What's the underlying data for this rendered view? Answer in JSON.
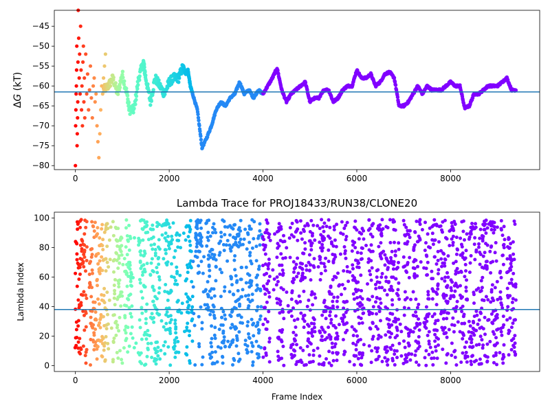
{
  "chart_data": [
    {
      "type": "scatter",
      "title": "",
      "xlabel": "",
      "ylabel": "ΔG (kT)",
      "ylabel_parts": [
        "Δ",
        "G",
        " (kT)"
      ],
      "xlim": [
        -450,
        9900
      ],
      "ylim": [
        -81,
        -41
      ],
      "xticks": [
        0,
        2000,
        4000,
        6000,
        8000
      ],
      "xtick_labels": [
        "0",
        "2000",
        "4000",
        "6000",
        "8000"
      ],
      "yticks": [
        -80,
        -75,
        -70,
        -65,
        -60,
        -55,
        -50,
        -45
      ],
      "ytick_labels": [
        "−80",
        "−75",
        "−70",
        "−65",
        "−60",
        "−55",
        "−50",
        "−45"
      ],
      "hline": -61.5,
      "color_map": "rainbow (color encodes trajectory segment; red = earliest frames, violet = latest)",
      "trace_anchors": [
        [
          600,
          -61
        ],
        [
          700,
          -60
        ],
        [
          800,
          -58
        ],
        [
          900,
          -62
        ],
        [
          1000,
          -57
        ],
        [
          1100,
          -62
        ],
        [
          1150,
          -66
        ],
        [
          1250,
          -66
        ],
        [
          1350,
          -58
        ],
        [
          1450,
          -54
        ],
        [
          1500,
          -58
        ],
        [
          1600,
          -64
        ],
        [
          1700,
          -58
        ],
        [
          1800,
          -60
        ],
        [
          1900,
          -62
        ],
        [
          2000,
          -59
        ],
        [
          2100,
          -58
        ],
        [
          2200,
          -58
        ],
        [
          2300,
          -55
        ],
        [
          2350,
          -57
        ],
        [
          2400,
          -56
        ],
        [
          2450,
          -60
        ],
        [
          2500,
          -62
        ],
        [
          2600,
          -66
        ],
        [
          2700,
          -75.5
        ],
        [
          2800,
          -73
        ],
        [
          2900,
          -70
        ],
        [
          3000,
          -66
        ],
        [
          3100,
          -64
        ],
        [
          3200,
          -65
        ],
        [
          3300,
          -63
        ],
        [
          3400,
          -62
        ],
        [
          3500,
          -59
        ],
        [
          3600,
          -62
        ],
        [
          3700,
          -61
        ],
        [
          3800,
          -63
        ],
        [
          3900,
          -61
        ],
        [
          4000,
          -62
        ],
        [
          4100,
          -60
        ],
        [
          4200,
          -58
        ],
        [
          4300,
          -55.5
        ],
        [
          4400,
          -61
        ],
        [
          4500,
          -64
        ],
        [
          4600,
          -62
        ],
        [
          4700,
          -61
        ],
        [
          4800,
          -60
        ],
        [
          4900,
          -59
        ],
        [
          5000,
          -64
        ],
        [
          5100,
          -63
        ],
        [
          5200,
          -63
        ],
        [
          5300,
          -61
        ],
        [
          5400,
          -61
        ],
        [
          5500,
          -64
        ],
        [
          5600,
          -63
        ],
        [
          5700,
          -61
        ],
        [
          5800,
          -60
        ],
        [
          5900,
          -60
        ],
        [
          6000,
          -56
        ],
        [
          6100,
          -58
        ],
        [
          6200,
          -58
        ],
        [
          6300,
          -57
        ],
        [
          6400,
          -60
        ],
        [
          6500,
          -59
        ],
        [
          6600,
          -57
        ],
        [
          6700,
          -56.5
        ],
        [
          6800,
          -58
        ],
        [
          6900,
          -65
        ],
        [
          7000,
          -65
        ],
        [
          7100,
          -64
        ],
        [
          7200,
          -62
        ],
        [
          7300,
          -60
        ],
        [
          7400,
          -62
        ],
        [
          7500,
          -60
        ],
        [
          7600,
          -61
        ],
        [
          7700,
          -61
        ],
        [
          7800,
          -61
        ],
        [
          7900,
          -60
        ],
        [
          8000,
          -59
        ],
        [
          8100,
          -60
        ],
        [
          8200,
          -60
        ],
        [
          8300,
          -65.5
        ],
        [
          8400,
          -65
        ],
        [
          8500,
          -62
        ],
        [
          8600,
          -62
        ],
        [
          8700,
          -61
        ],
        [
          8800,
          -60
        ],
        [
          8900,
          -60
        ],
        [
          9000,
          -60
        ],
        [
          9100,
          -59
        ],
        [
          9200,
          -58
        ],
        [
          9300,
          -61
        ],
        [
          9400,
          -61
        ]
      ],
      "early_points": [
        [
          0,
          -80
        ],
        [
          5,
          -70
        ],
        [
          10,
          -66
        ],
        [
          15,
          -62
        ],
        [
          20,
          -60
        ],
        [
          25,
          -56
        ],
        [
          30,
          -50
        ],
        [
          35,
          -75
        ],
        [
          40,
          -72
        ],
        [
          45,
          -68
        ],
        [
          50,
          -64
        ],
        [
          55,
          -54
        ],
        [
          60,
          -41
        ],
        [
          70,
          -48
        ],
        [
          80,
          -58
        ],
        [
          90,
          -52
        ],
        [
          100,
          -62
        ],
        [
          110,
          -45
        ],
        [
          120,
          -56
        ],
        [
          130,
          -66
        ],
        [
          140,
          -60
        ],
        [
          150,
          -70
        ],
        [
          160,
          -54
        ],
        [
          170,
          -50
        ],
        [
          180,
          -64
        ],
        [
          190,
          -58
        ],
        [
          200,
          -68
        ],
        [
          220,
          -52
        ],
        [
          240,
          -62
        ],
        [
          260,
          -57
        ],
        [
          280,
          -66
        ],
        [
          300,
          -61
        ],
        [
          320,
          -55
        ],
        [
          340,
          -63
        ],
        [
          360,
          -68
        ],
        [
          380,
          -60
        ],
        [
          400,
          -58
        ],
        [
          420,
          -64
        ],
        [
          440,
          -62
        ],
        [
          460,
          -70
        ],
        [
          480,
          -74
        ],
        [
          500,
          -78
        ],
        [
          520,
          -72
        ],
        [
          540,
          -66
        ],
        [
          560,
          -60
        ],
        [
          580,
          -62
        ],
        [
          600,
          -58
        ],
        [
          620,
          -55
        ],
        [
          640,
          -52
        ]
      ]
    },
    {
      "type": "scatter",
      "title": "Lambda Trace for PROJ18433/RUN38/CLONE20",
      "xlabel": "Frame Index",
      "ylabel": "Lambda Index",
      "xlim": [
        -450,
        9900
      ],
      "ylim": [
        -4,
        104
      ],
      "xticks": [
        0,
        2000,
        4000,
        6000,
        8000
      ],
      "xtick_labels": [
        "0",
        "2000",
        "4000",
        "6000",
        "8000"
      ],
      "yticks": [
        0,
        20,
        40,
        60,
        80,
        100
      ],
      "ytick_labels": [
        "0",
        "20",
        "40",
        "60",
        "80",
        "100"
      ],
      "hline": 38,
      "lambda_range": [
        0,
        99
      ],
      "frame_range": [
        0,
        9400
      ],
      "color_map": "rainbow (same segment coloring as upper panel)",
      "dense_bands": [
        [
          0,
          250
        ],
        [
          300,
          700
        ],
        [
          800,
          1000
        ],
        [
          1050,
          1200
        ],
        [
          1350,
          1550
        ],
        [
          1600,
          1800
        ],
        [
          1900,
          2050
        ],
        [
          2100,
          2200
        ],
        [
          2350,
          2500
        ],
        [
          2550,
          2700
        ],
        [
          2800,
          3000
        ],
        [
          3100,
          3200
        ],
        [
          3300,
          3550
        ],
        [
          3650,
          3800
        ],
        [
          3850,
          3950
        ],
        [
          4000,
          4150
        ],
        [
          4300,
          4450
        ],
        [
          4600,
          4750
        ],
        [
          4800,
          4900
        ],
        [
          4950,
          5100
        ],
        [
          5200,
          5350
        ],
        [
          5400,
          5600
        ],
        [
          5700,
          5800
        ],
        [
          5900,
          6150
        ],
        [
          6250,
          6350
        ],
        [
          6400,
          6550
        ],
        [
          6600,
          6900
        ],
        [
          7000,
          7150
        ],
        [
          7200,
          7350
        ],
        [
          7450,
          7550
        ],
        [
          7600,
          7750
        ],
        [
          7800,
          7950
        ],
        [
          8000,
          8150
        ],
        [
          8200,
          8350
        ],
        [
          8400,
          8550
        ],
        [
          8600,
          8800
        ],
        [
          8850,
          9000
        ],
        [
          9050,
          9150
        ],
        [
          9200,
          9400
        ]
      ]
    }
  ]
}
